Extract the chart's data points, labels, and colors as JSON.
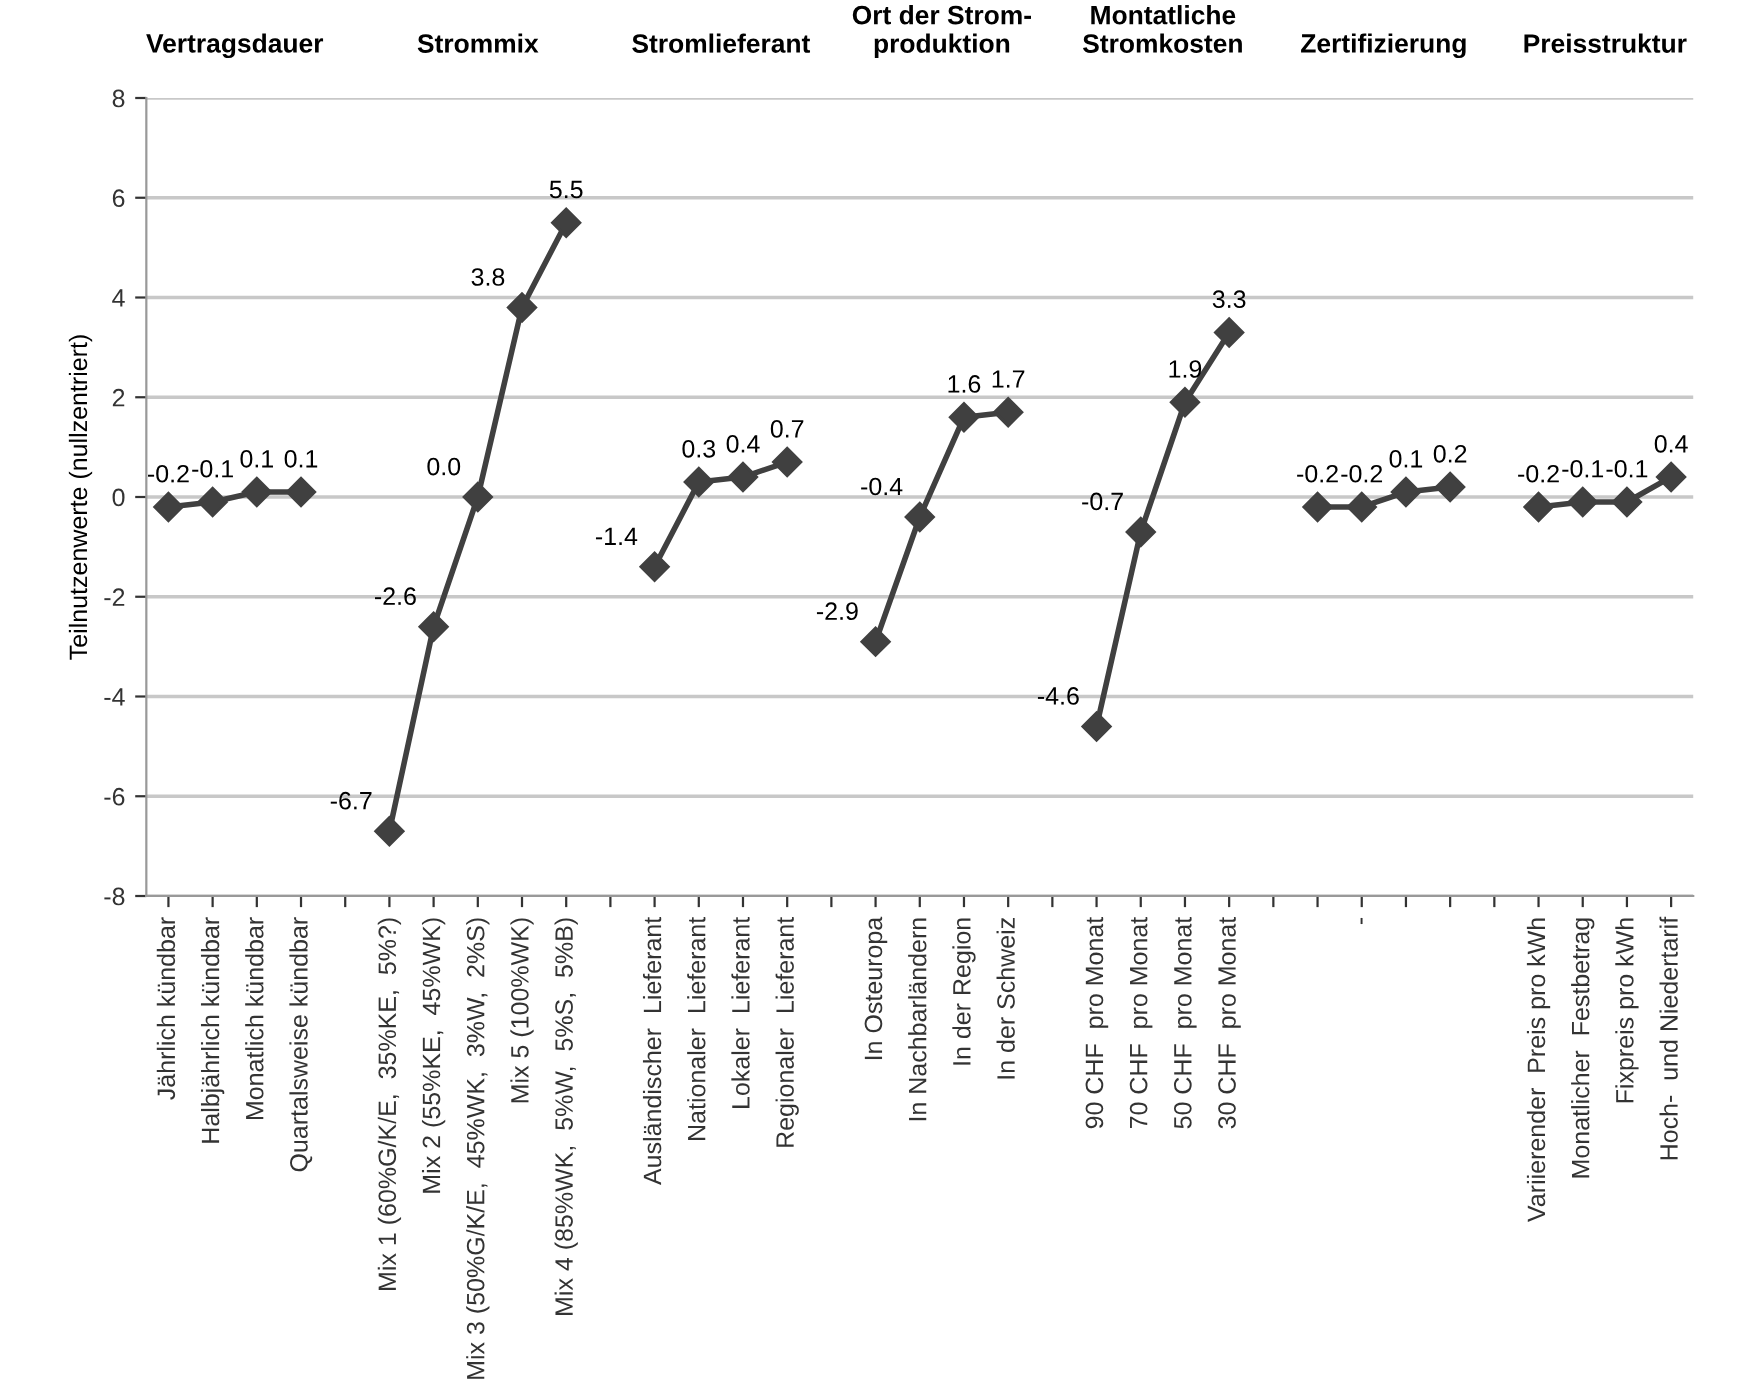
{
  "chart_data": {
    "type": "line",
    "ylabel": "Teilnutzenwerte (nullzentriert)",
    "annotations": [
      "Vertragsdauer",
      "Strommix",
      "Stromlieferant",
      "Ort der Strom-\nproduktion",
      "Montatliche\nStromkosten",
      "Zertifizierung",
      "Preisstruktur"
    ],
    "categories": [
      "Jährlich kündbar",
      "Halbjährlich kündbar",
      "Monatlich kündbar",
      "Quartalsweise kündbar",
      null,
      "Mix 1 (60%G/K/E,  35%KE,  5%?)",
      "Mix 2 (55%KE,  45%WK)",
      "Mix 3 (50%G/K/E,  45%WK,  3%W,  2%S)",
      "Mix 5 (100%WK)",
      "Mix 4 (85%WK,  5%W,  5%S,  5%B)",
      null,
      "Ausländischer  Lieferant",
      "Nationaler  Lieferant",
      "Lokaler  Lieferant",
      "Regionaler  Lieferant",
      null,
      "In Osteuropa",
      "In Nachbarländern",
      "In der Region",
      "In der Schweiz",
      null,
      "90 CHF  pro Monat",
      "70 CHF  pro Monat",
      "50 CHF  pro Monat",
      "30 CHF  pro Monat",
      null,
      null,
      "-",
      null,
      null,
      null,
      "Variierender  Preis pro kWh",
      "Monatlicher  Festbetrag",
      "Fixpreis pro kWh",
      "Hoch-  und Niedertarif"
    ],
    "series": [
      {
        "color": "#404040",
        "values": [
          -0.2,
          -0.1,
          0.1,
          0.1,
          null,
          -6.7,
          -2.6,
          0.0,
          3.8,
          5.5,
          null,
          -1.4,
          0.3,
          0.4,
          0.7,
          null,
          -2.9,
          -0.4,
          1.6,
          1.7,
          null,
          -4.6,
          -0.7,
          1.9,
          3.3,
          null,
          -0.2,
          -0.2,
          0.1,
          0.2,
          null,
          -0.2,
          -0.1,
          -0.1,
          0.4
        ],
        "value_labels": [
          "-0.2",
          "-0.1",
          "0.1",
          "0.1",
          null,
          "-6.7",
          "-2.6",
          "0.0",
          "3.8",
          "5.5",
          null,
          "-1.4",
          "0.3",
          "0.4",
          "0.7",
          null,
          "-2.9",
          "-0.4",
          "1.6",
          "1.7",
          null,
          "-4.6",
          "-0.7",
          "1.9",
          "3.3",
          null,
          "-0.2",
          "-0.2",
          "0.1",
          "0.2",
          null,
          "-0.2",
          "-0.1",
          "-0.1",
          "0.4"
        ]
      }
    ],
    "ylim": [
      -8,
      8
    ],
    "yticks": [
      -8,
      -6,
      -4,
      -2,
      0,
      2,
      4,
      6,
      8
    ],
    "grid": "y",
    "marker": "diamond",
    "line_style": "solid",
    "legend": false
  }
}
